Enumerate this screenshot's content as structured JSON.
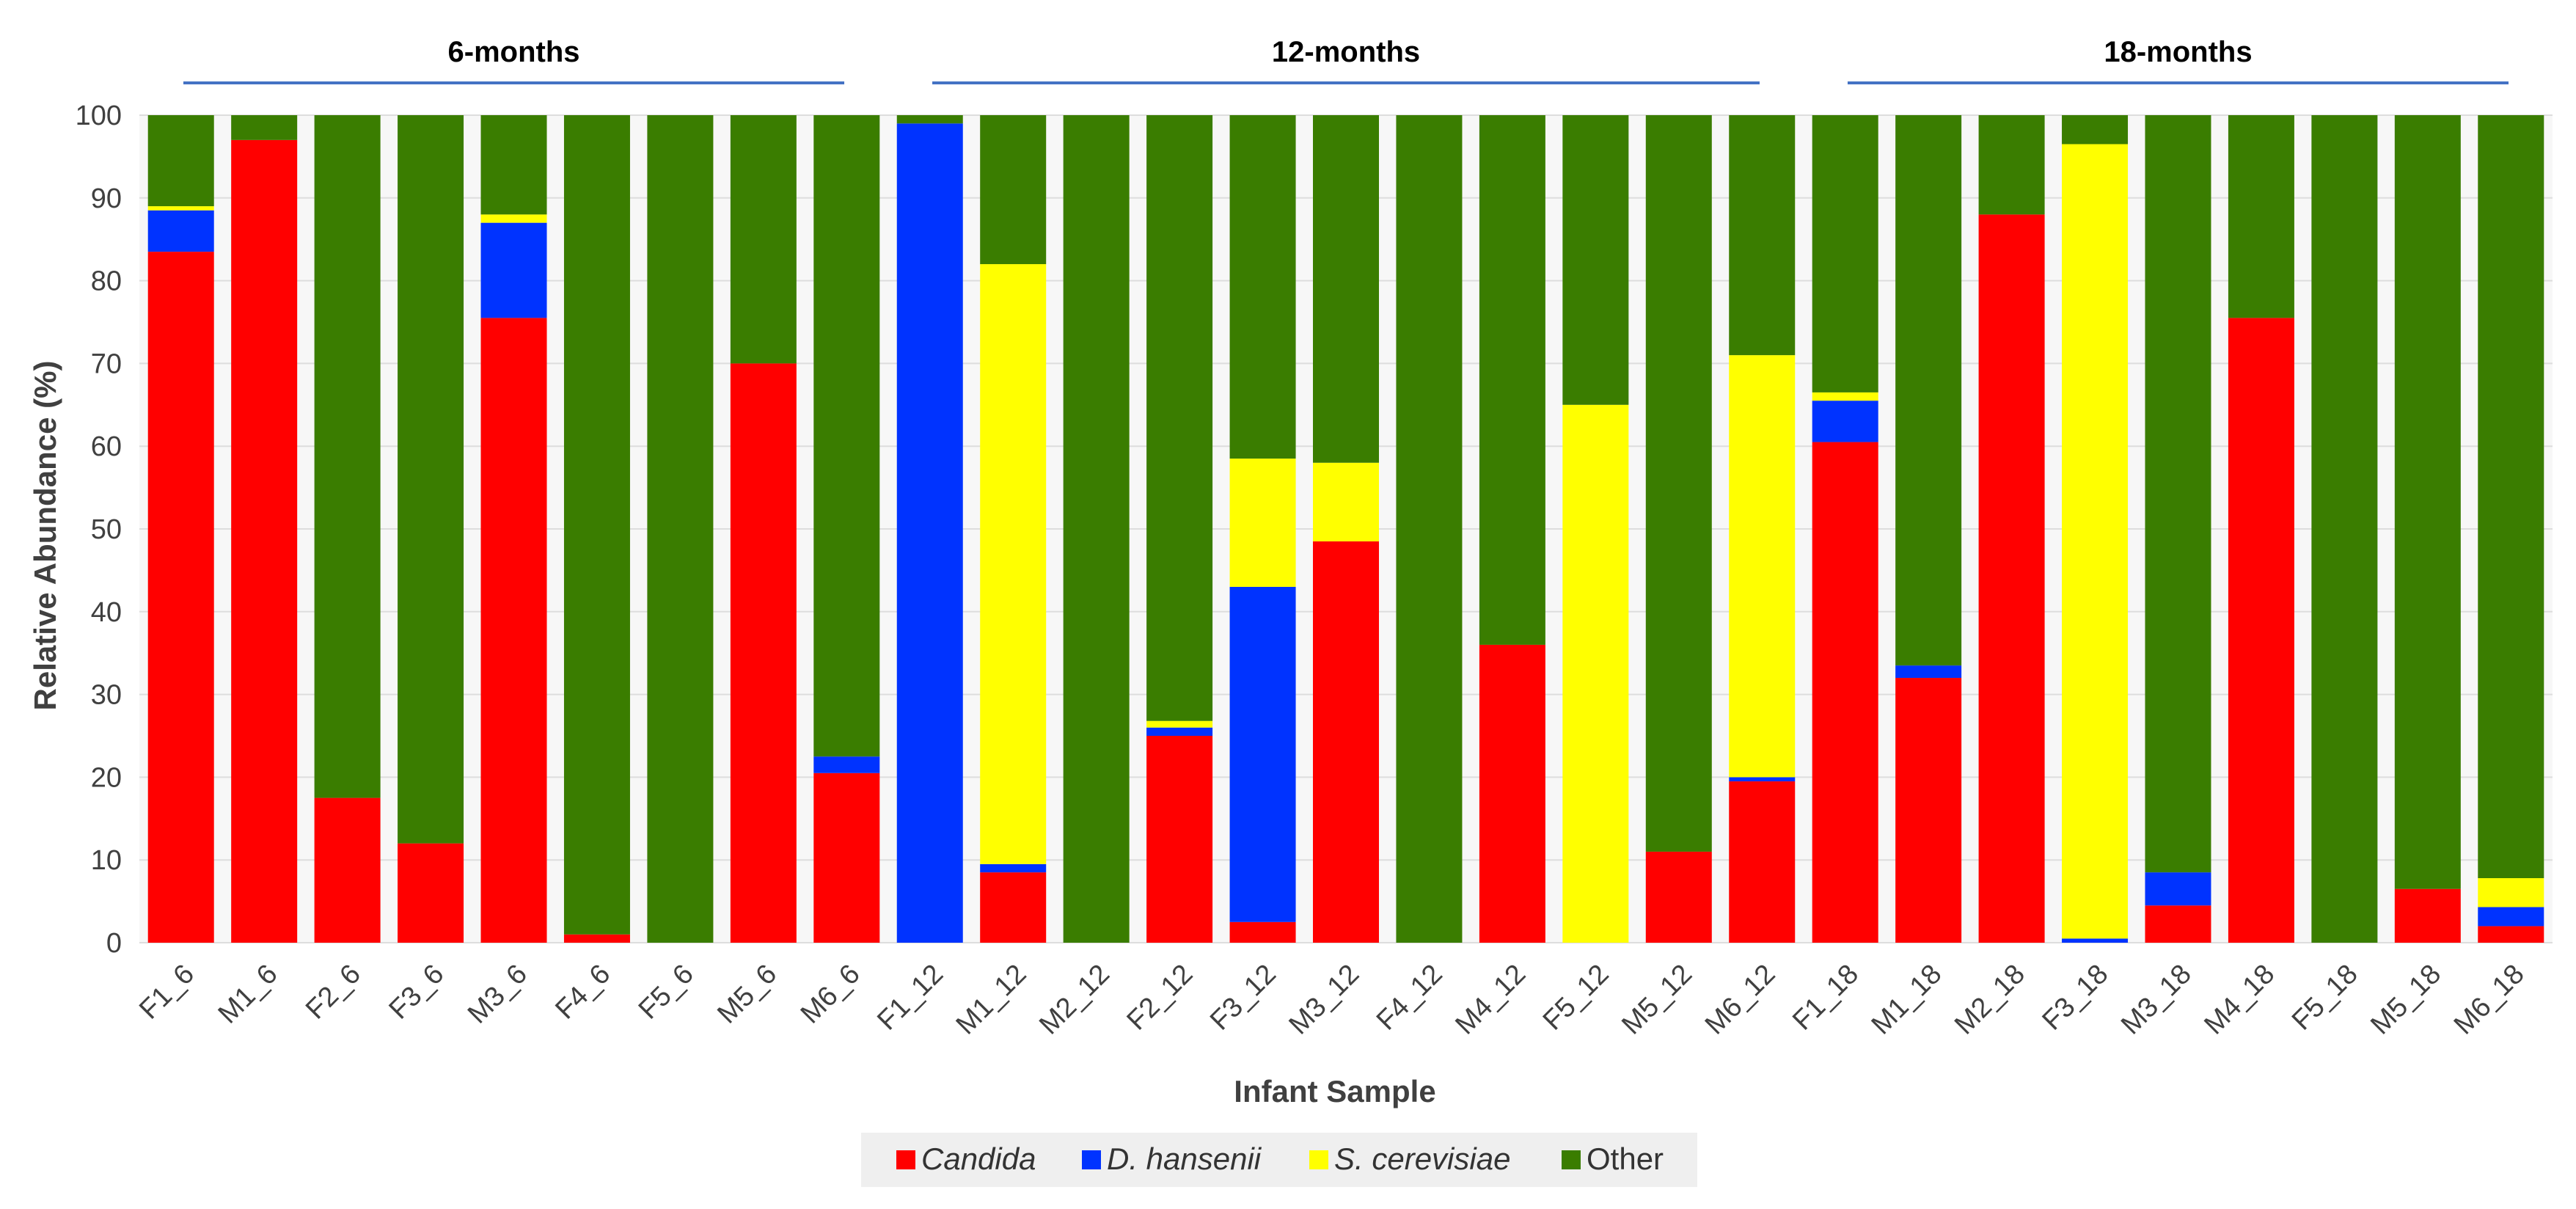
{
  "chart_data": {
    "type": "bar",
    "stacked": true,
    "ylabel": "Relative Abundance (%)",
    "xlabel": "Infant Sample",
    "ylim": [
      0,
      100
    ],
    "yticks": [
      0,
      10,
      20,
      30,
      40,
      50,
      60,
      70,
      80,
      90,
      100
    ],
    "grid": true,
    "groups": [
      {
        "label": "6-months",
        "count": 9
      },
      {
        "label": "12-months",
        "count": 11
      },
      {
        "label": "18-months",
        "count": 9
      }
    ],
    "categories": [
      "F1_6",
      "M1_6",
      "F2_6",
      "F3_6",
      "M3_6",
      "F4_6",
      "F5_6",
      "M5_6",
      "M6_6",
      "F1_12",
      "M1_12",
      "M2_12",
      "F2_12",
      "F3_12",
      "M3_12",
      "F4_12",
      "M4_12",
      "F5_12",
      "M5_12",
      "M6_12",
      "F1_18",
      "M1_18",
      "M2_18",
      "F3_18",
      "M3_18",
      "M4_18",
      "F5_18",
      "M5_18",
      "M6_18"
    ],
    "series": [
      {
        "name": "Candida",
        "color": "#ff0000",
        "italic": true,
        "values": [
          83.5,
          97,
          17.5,
          12,
          75.5,
          1,
          0,
          70,
          20.5,
          0,
          8.5,
          0,
          25,
          2.5,
          48.5,
          0,
          36,
          0,
          11,
          19.5,
          60.5,
          32,
          88,
          0,
          4.5,
          75.5,
          0,
          6.5,
          2
        ]
      },
      {
        "name": "D. hansenii",
        "color": "#0033ff",
        "italic": true,
        "values": [
          5,
          0,
          0,
          0,
          11.5,
          0,
          0,
          0,
          2,
          99,
          1,
          0,
          1,
          40.5,
          0,
          0,
          0,
          0,
          0,
          0.5,
          5,
          1.5,
          0,
          0.5,
          4,
          0,
          0,
          0,
          2.3
        ]
      },
      {
        "name": "S. cerevisiae",
        "color": "#ffff00",
        "italic": true,
        "values": [
          0.5,
          0,
          0,
          0,
          1,
          0,
          0,
          0,
          0,
          0,
          72.5,
          0,
          0.8,
          15.5,
          9.5,
          0,
          0,
          65,
          0,
          51,
          1,
          0,
          0,
          96,
          0,
          0,
          0,
          0,
          3.5
        ]
      },
      {
        "name": "Other",
        "color": "#3a7d00",
        "italic": false,
        "values": [
          11,
          3,
          82.5,
          88,
          12,
          99,
          100,
          30,
          77.5,
          1,
          18,
          100,
          73.2,
          41.5,
          42,
          100,
          64,
          35,
          89,
          29,
          33.5,
          66.5,
          12,
          3.5,
          91.5,
          24.5,
          100,
          93.5,
          92.2
        ]
      }
    ]
  }
}
